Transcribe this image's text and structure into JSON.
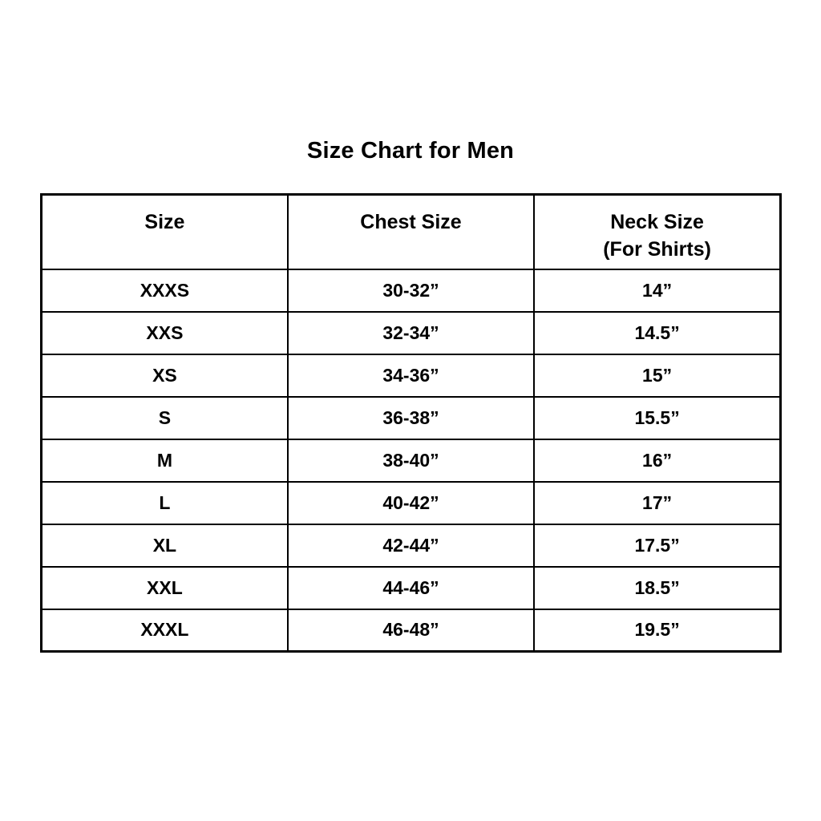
{
  "page": {
    "title": "Size Chart for Men"
  },
  "colors": {
    "background": "#ffffff",
    "text": "#000000",
    "border": "#000000"
  },
  "chart_data": {
    "type": "table",
    "title": "Size Chart for Men",
    "columns": [
      {
        "label": "Size"
      },
      {
        "label": "Chest Size"
      },
      {
        "label": "Neck Size",
        "sublabel": "(For Shirts)"
      }
    ],
    "rows": [
      [
        "XXXS",
        "30-32”",
        "14”"
      ],
      [
        "XXS",
        "32-34”",
        "14.5”"
      ],
      [
        "XS",
        "34-36”",
        "15”"
      ],
      [
        "S",
        "36-38”",
        "15.5”"
      ],
      [
        "M",
        "38-40”",
        "16”"
      ],
      [
        "L",
        "40-42”",
        "17”"
      ],
      [
        "XL",
        "42-44”",
        "17.5”"
      ],
      [
        "XXL",
        "44-46”",
        "18.5”"
      ],
      [
        "XXXL",
        "46-48”",
        "19.5”"
      ]
    ],
    "layout": {
      "grid": "on",
      "legend": "none",
      "columns_count": 3,
      "rows_count": 9
    }
  }
}
